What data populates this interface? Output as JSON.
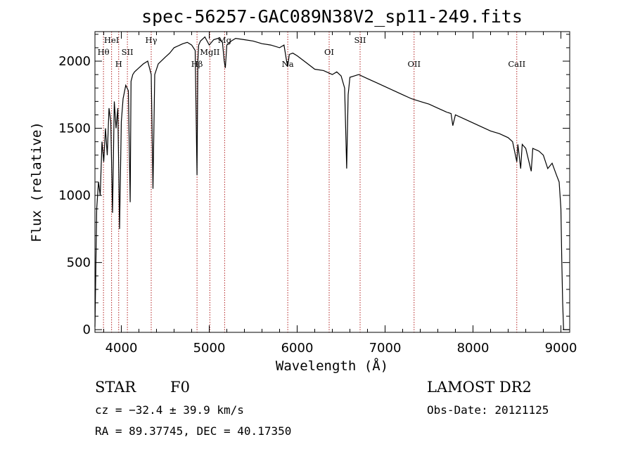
{
  "chart_data": {
    "type": "line",
    "title": "spec-56257-GAC089N38V2_sp11-249.fits",
    "xlabel": "Wavelength (Å)",
    "ylabel": "Flux (relative)",
    "xlim": [
      3700,
      9100
    ],
    "ylim": [
      -20,
      2220
    ],
    "xticks": [
      4000,
      5000,
      6000,
      7000,
      8000,
      9000
    ],
    "xtick_labels": [
      "4000",
      "5000",
      "6000",
      "7000",
      "8000",
      "9000"
    ],
    "yticks": [
      0,
      500,
      1000,
      1500,
      2000
    ],
    "ytick_labels": [
      "0",
      "500",
      "1000",
      "1500",
      "2000"
    ],
    "series": [
      {
        "name": "flux",
        "x": [
          3700,
          3720,
          3740,
          3760,
          3780,
          3800,
          3820,
          3840,
          3860,
          3880,
          3900,
          3920,
          3940,
          3960,
          3970,
          3980,
          4000,
          4020,
          4050,
          4080,
          4101,
          4110,
          4130,
          4150,
          4200,
          4250,
          4300,
          4340,
          4360,
          4380,
          4420,
          4500,
          4550,
          4600,
          4700,
          4750,
          4800,
          4840,
          4861,
          4870,
          4880,
          4900,
          4950,
          5000,
          5050,
          5100,
          5150,
          5170,
          5183,
          5200,
          5250,
          5300,
          5400,
          5500,
          5600,
          5700,
          5800,
          5850,
          5880,
          5893,
          5910,
          5950,
          6000,
          6100,
          6200,
          6300,
          6400,
          6450,
          6500,
          6540,
          6563,
          6580,
          6600,
          6650,
          6700,
          6800,
          6900,
          7000,
          7100,
          7200,
          7300,
          7400,
          7500,
          7600,
          7700,
          7750,
          7770,
          7800,
          7900,
          8000,
          8100,
          8200,
          8300,
          8400,
          8450,
          8498,
          8510,
          8542,
          8560,
          8600,
          8662,
          8680,
          8750,
          8800,
          8850,
          8900,
          8950,
          8980,
          9000,
          9010,
          9020,
          9030,
          9050,
          9100
        ],
        "values": [
          20,
          900,
          1100,
          1000,
          1400,
          1250,
          1500,
          1300,
          1650,
          1550,
          870,
          1700,
          1500,
          1650,
          1200,
          750,
          1550,
          1720,
          1820,
          1780,
          950,
          1850,
          1900,
          1920,
          1950,
          1980,
          2000,
          1900,
          1050,
          1900,
          1980,
          2030,
          2060,
          2100,
          2130,
          2140,
          2120,
          2080,
          1150,
          2000,
          2120,
          2150,
          2180,
          2120,
          2160,
          2170,
          2140,
          2000,
          1950,
          2120,
          2150,
          2170,
          2160,
          2150,
          2130,
          2120,
          2100,
          2120,
          2000,
          1960,
          2050,
          2060,
          2040,
          1990,
          1940,
          1930,
          1900,
          1920,
          1890,
          1800,
          1200,
          1750,
          1880,
          1890,
          1900,
          1870,
          1840,
          1810,
          1780,
          1750,
          1720,
          1700,
          1680,
          1650,
          1620,
          1610,
          1520,
          1600,
          1570,
          1540,
          1510,
          1480,
          1460,
          1430,
          1400,
          1250,
          1380,
          1200,
          1380,
          1350,
          1180,
          1350,
          1330,
          1300,
          1200,
          1240,
          1150,
          1100,
          900,
          500,
          200,
          0,
          0,
          0
        ]
      }
    ],
    "line_markers": [
      {
        "label": "Hθ",
        "wavelength": 3797,
        "row": 2
      },
      {
        "label": "HeI",
        "wavelength": 3889,
        "row": 1
      },
      {
        "label": "H",
        "wavelength": 3970,
        "row": 3
      },
      {
        "label": "SII",
        "wavelength": 4069,
        "row": 2
      },
      {
        "label": "Hγ",
        "wavelength": 4340,
        "row": 1
      },
      {
        "label": "Hβ",
        "wavelength": 4861,
        "row": 3
      },
      {
        "label": "MgII",
        "wavelength": 5007,
        "row": 2
      },
      {
        "label": "Mg",
        "wavelength": 5175,
        "row": 1
      },
      {
        "label": "Na",
        "wavelength": 5893,
        "row": 3
      },
      {
        "label": "OI",
        "wavelength": 6364,
        "row": 2
      },
      {
        "label": "SII",
        "wavelength": 6716,
        "row": 1
      },
      {
        "label": "OII",
        "wavelength": 7330,
        "row": 3
      },
      {
        "label": "CaII",
        "wavelength": 8498,
        "row": 3
      }
    ]
  },
  "info": {
    "object_class": "STAR",
    "subclass": "F0",
    "survey": "LAMOST DR2",
    "cz": "cz = −32.4 ± 39.9 km/s",
    "obs_date": "Obs-Date: 20121125",
    "coords": "RA =  89.37745, DEC =  40.17350"
  },
  "colors": {
    "marker_line": "#b22222",
    "spectrum": "#000000",
    "axis": "#000000"
  }
}
